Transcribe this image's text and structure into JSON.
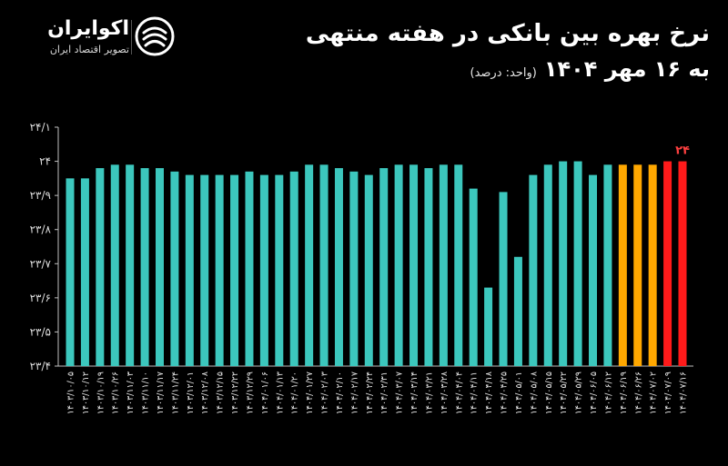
{
  "header": {
    "title_line1": "نرخ بهره بین بانکی در هفته منتهی",
    "title_line2": "به ۱۶ مهر ۱۴۰۴",
    "unit_note": "(واحد: درصد)"
  },
  "logo": {
    "brand": "اکوایران",
    "tagline": "تصویر اقتصاد ایران",
    "icon": "ecoiran-swirl-icon"
  },
  "colors": {
    "background": "#000000",
    "teal": "#3cc7bd",
    "orange": "#ffa800",
    "red": "#ff1a1a"
  },
  "chart_data": {
    "type": "bar",
    "categories": [
      "۱۴۰۳/۱۰/۰۵",
      "۱۴۰۳/۱۰/۱۲",
      "۱۴۰۳/۱۰/۱۹",
      "۱۴۰۳/۱۰/۲۶",
      "۱۴۰۳/۱۱/۰۳",
      "۱۴۰۳/۱۱/۱۰",
      "۱۴۰۳/۱۱/۱۷",
      "۱۴۰۳/۱۱/۲۴",
      "۱۴۰۳/۱۲/۰۱",
      "۱۴۰۳/۱۲/۰۸",
      "۱۴۰۳/۱۲/۱۵",
      "۱۴۰۳/۱۲/۲۲",
      "۱۴۰۳/۱۲/۲۹",
      "۱۴۰۴/۰۱/۰۶",
      "۱۴۰۴/۰۱/۱۳",
      "۱۴۰۴/۰۱/۲۰",
      "۱۴۰۴/۰۱/۲۷",
      "۱۴۰۴/۰۲/۰۳",
      "۱۴۰۴/۰۲/۱۰",
      "۱۴۰۴/۰۲/۱۷",
      "۱۴۰۴/۰۲/۲۴",
      "۱۴۰۴/۰۲/۳۱",
      "۱۴۰۴/۰۳/۰۷",
      "۱۴۰۴/۰۳/۱۴",
      "۱۴۰۴/۰۳/۲۱",
      "۱۴۰۴/۰۳/۲۸",
      "۱۴۰۴/۰۴/۰۴",
      "۱۴۰۴/۰۴/۱۱",
      "۱۴۰۴/۰۴/۱۸",
      "۱۴۰۴/۰۴/۲۵",
      "۱۴۰۴/۰۵/۰۱",
      "۱۴۰۴/۰۵/۰۸",
      "۱۴۰۴/۰۵/۱۵",
      "۱۴۰۴/۰۵/۲۲",
      "۱۴۰۴/۰۵/۲۹",
      "۱۴۰۴/۰۶/۰۵",
      "۱۴۰۴/۰۶/۱۲",
      "۱۴۰۴/۰۶/۱۹",
      "۱۴۰۴/۰۶/۲۶",
      "۱۴۰۴/۰۷/۰۲",
      "۱۴۰۴/۰۷/۰۹",
      "۱۴۰۴/۰۷/۱۶"
    ],
    "values": [
      23.95,
      23.95,
      23.98,
      23.99,
      23.99,
      23.98,
      23.98,
      23.97,
      23.96,
      23.96,
      23.96,
      23.96,
      23.97,
      23.96,
      23.96,
      23.97,
      23.99,
      23.99,
      23.98,
      23.97,
      23.96,
      23.98,
      23.99,
      23.99,
      23.98,
      23.99,
      23.99,
      23.92,
      23.63,
      23.91,
      23.72,
      23.96,
      23.99,
      24.0,
      24.0,
      23.96,
      23.99,
      23.99,
      23.99,
      23.99,
      24.0,
      24.0
    ],
    "bar_colors": [
      "#3cc7bd",
      "#3cc7bd",
      "#3cc7bd",
      "#3cc7bd",
      "#3cc7bd",
      "#3cc7bd",
      "#3cc7bd",
      "#3cc7bd",
      "#3cc7bd",
      "#3cc7bd",
      "#3cc7bd",
      "#3cc7bd",
      "#3cc7bd",
      "#3cc7bd",
      "#3cc7bd",
      "#3cc7bd",
      "#3cc7bd",
      "#3cc7bd",
      "#3cc7bd",
      "#3cc7bd",
      "#3cc7bd",
      "#3cc7bd",
      "#3cc7bd",
      "#3cc7bd",
      "#3cc7bd",
      "#3cc7bd",
      "#3cc7bd",
      "#3cc7bd",
      "#3cc7bd",
      "#3cc7bd",
      "#3cc7bd",
      "#3cc7bd",
      "#3cc7bd",
      "#3cc7bd",
      "#3cc7bd",
      "#3cc7bd",
      "#3cc7bd",
      "#ffa800",
      "#ffa800",
      "#ffa800",
      "#ff1a1a",
      "#ff1a1a"
    ],
    "data_labels": [
      {
        "index": 41,
        "text": "۲۴"
      }
    ],
    "ylim": [
      23.4,
      24.1
    ],
    "yticks": [
      23.4,
      23.5,
      23.6,
      23.7,
      23.8,
      23.9,
      24.0,
      24.1
    ],
    "ytick_labels": [
      "۲۳/۴",
      "۲۳/۵",
      "۲۳/۶",
      "۲۳/۷",
      "۲۳/۸",
      "۲۳/۹",
      "۲۴",
      "۲۴/۱"
    ],
    "grid": false,
    "xlabel": "",
    "ylabel": ""
  }
}
